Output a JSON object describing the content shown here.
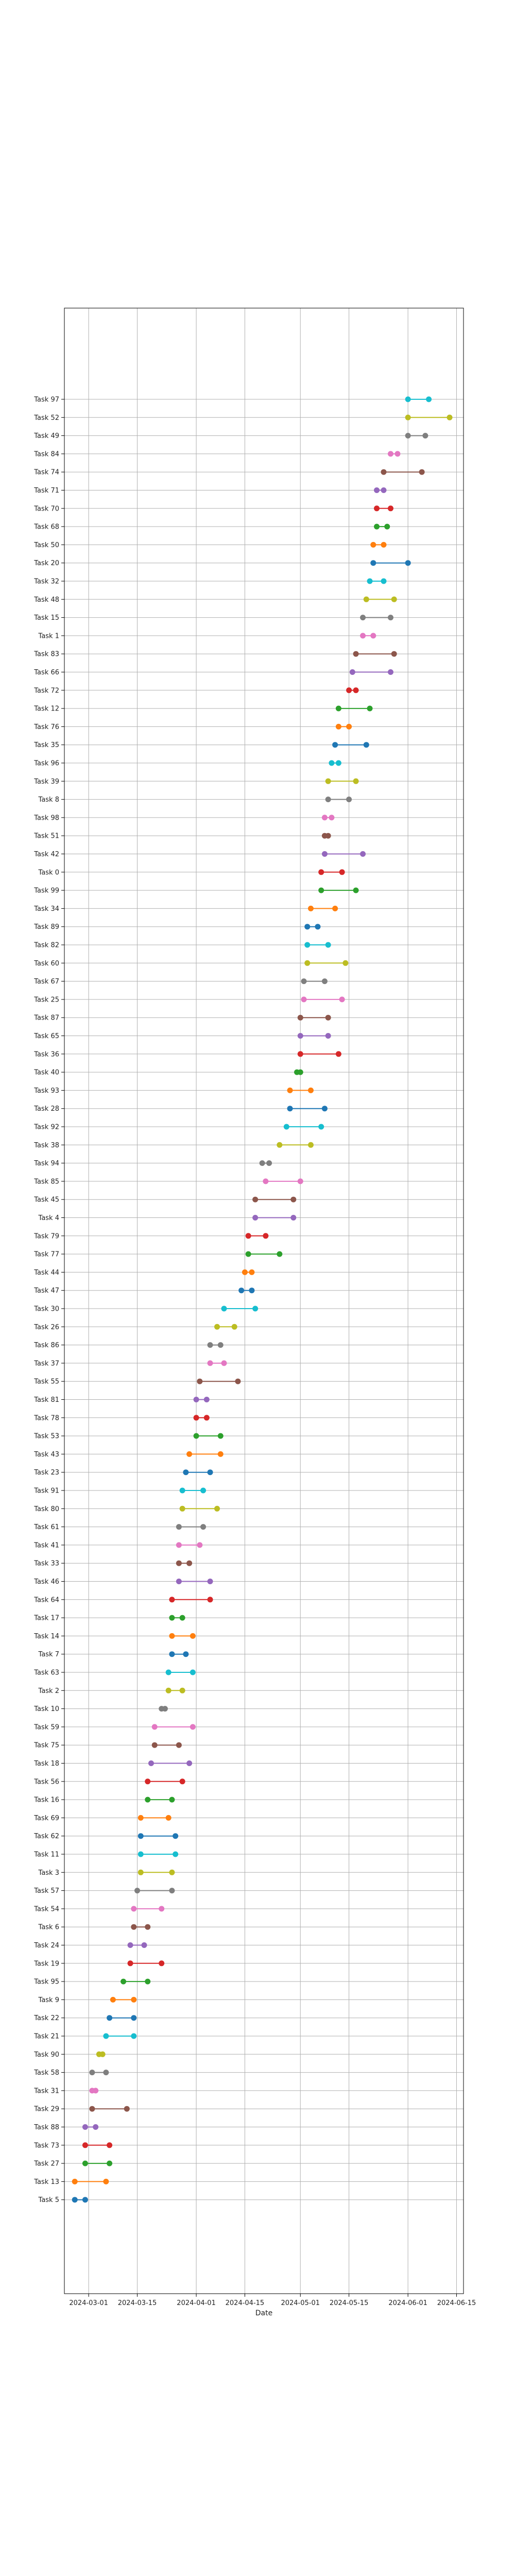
{
  "chart_data": {
    "type": "gantt-dumbbell",
    "xlabel": "Date",
    "ylabel": "",
    "grid": true,
    "x_axis": {
      "range": [
        "2024-02-23",
        "2024-06-17"
      ],
      "tick_values": [
        "2024-03-01",
        "2024-03-15",
        "2024-04-01",
        "2024-04-15",
        "2024-05-01",
        "2024-05-15",
        "2024-06-01",
        "2024-06-15"
      ],
      "tick_labels": [
        "2024-03-01",
        "2024-03-15",
        "2024-04-01",
        "2024-04-15",
        "2024-05-01",
        "2024-05-15",
        "2024-06-01",
        "2024-06-15"
      ]
    },
    "series": [
      {
        "name": "Task 97",
        "start": "2024-06-01",
        "end": "2024-06-07",
        "color": "#17becf"
      },
      {
        "name": "Task 52",
        "start": "2024-06-01",
        "end": "2024-06-13",
        "color": "#bcbd22"
      },
      {
        "name": "Task 49",
        "start": "2024-06-01",
        "end": "2024-06-06",
        "color": "#7f7f7f"
      },
      {
        "name": "Task 84",
        "start": "2024-05-27",
        "end": "2024-05-29",
        "color": "#e377c2"
      },
      {
        "name": "Task 74",
        "start": "2024-05-25",
        "end": "2024-06-05",
        "color": "#8c564b"
      },
      {
        "name": "Task 71",
        "start": "2024-05-23",
        "end": "2024-05-25",
        "color": "#9467bd"
      },
      {
        "name": "Task 70",
        "start": "2024-05-23",
        "end": "2024-05-27",
        "color": "#d62728"
      },
      {
        "name": "Task 68",
        "start": "2024-05-23",
        "end": "2024-05-26",
        "color": "#2ca02c"
      },
      {
        "name": "Task 50",
        "start": "2024-05-22",
        "end": "2024-05-25",
        "color": "#ff7f0e"
      },
      {
        "name": "Task 20",
        "start": "2024-05-22",
        "end": "2024-06-01",
        "color": "#1f77b4"
      },
      {
        "name": "Task 32",
        "start": "2024-05-21",
        "end": "2024-05-25",
        "color": "#17becf"
      },
      {
        "name": "Task 48",
        "start": "2024-05-20",
        "end": "2024-05-28",
        "color": "#bcbd22"
      },
      {
        "name": "Task 15",
        "start": "2024-05-19",
        "end": "2024-05-27",
        "color": "#7f7f7f"
      },
      {
        "name": "Task 1",
        "start": "2024-05-19",
        "end": "2024-05-22",
        "color": "#e377c2"
      },
      {
        "name": "Task 83",
        "start": "2024-05-17",
        "end": "2024-05-28",
        "color": "#8c564b"
      },
      {
        "name": "Task 66",
        "start": "2024-05-16",
        "end": "2024-05-27",
        "color": "#9467bd"
      },
      {
        "name": "Task 72",
        "start": "2024-05-15",
        "end": "2024-05-17",
        "color": "#d62728"
      },
      {
        "name": "Task 12",
        "start": "2024-05-12",
        "end": "2024-05-21",
        "color": "#2ca02c"
      },
      {
        "name": "Task 76",
        "start": "2024-05-12",
        "end": "2024-05-15",
        "color": "#ff7f0e"
      },
      {
        "name": "Task 35",
        "start": "2024-05-11",
        "end": "2024-05-20",
        "color": "#1f77b4"
      },
      {
        "name": "Task 96",
        "start": "2024-05-10",
        "end": "2024-05-12",
        "color": "#17becf"
      },
      {
        "name": "Task 39",
        "start": "2024-05-09",
        "end": "2024-05-17",
        "color": "#bcbd22"
      },
      {
        "name": "Task 8",
        "start": "2024-05-09",
        "end": "2024-05-15",
        "color": "#7f7f7f"
      },
      {
        "name": "Task 98",
        "start": "2024-05-08",
        "end": "2024-05-10",
        "color": "#e377c2"
      },
      {
        "name": "Task 51",
        "start": "2024-05-08",
        "end": "2024-05-09",
        "color": "#8c564b"
      },
      {
        "name": "Task 42",
        "start": "2024-05-08",
        "end": "2024-05-19",
        "color": "#9467bd"
      },
      {
        "name": "Task 0",
        "start": "2024-05-07",
        "end": "2024-05-13",
        "color": "#d62728"
      },
      {
        "name": "Task 99",
        "start": "2024-05-07",
        "end": "2024-05-17",
        "color": "#2ca02c"
      },
      {
        "name": "Task 34",
        "start": "2024-05-04",
        "end": "2024-05-11",
        "color": "#ff7f0e"
      },
      {
        "name": "Task 89",
        "start": "2024-05-03",
        "end": "2024-05-06",
        "color": "#1f77b4"
      },
      {
        "name": "Task 82",
        "start": "2024-05-03",
        "end": "2024-05-09",
        "color": "#17becf"
      },
      {
        "name": "Task 60",
        "start": "2024-05-03",
        "end": "2024-05-14",
        "color": "#bcbd22"
      },
      {
        "name": "Task 67",
        "start": "2024-05-02",
        "end": "2024-05-08",
        "color": "#7f7f7f"
      },
      {
        "name": "Task 25",
        "start": "2024-05-02",
        "end": "2024-05-13",
        "color": "#e377c2"
      },
      {
        "name": "Task 87",
        "start": "2024-05-01",
        "end": "2024-05-09",
        "color": "#8c564b"
      },
      {
        "name": "Task 65",
        "start": "2024-05-01",
        "end": "2024-05-09",
        "color": "#9467bd"
      },
      {
        "name": "Task 36",
        "start": "2024-05-01",
        "end": "2024-05-12",
        "color": "#d62728"
      },
      {
        "name": "Task 40",
        "start": "2024-04-30",
        "end": "2024-05-01",
        "color": "#2ca02c"
      },
      {
        "name": "Task 93",
        "start": "2024-04-28",
        "end": "2024-05-04",
        "color": "#ff7f0e"
      },
      {
        "name": "Task 28",
        "start": "2024-04-28",
        "end": "2024-05-08",
        "color": "#1f77b4"
      },
      {
        "name": "Task 92",
        "start": "2024-04-27",
        "end": "2024-05-07",
        "color": "#17becf"
      },
      {
        "name": "Task 38",
        "start": "2024-04-25",
        "end": "2024-05-04",
        "color": "#bcbd22"
      },
      {
        "name": "Task 94",
        "start": "2024-04-20",
        "end": "2024-04-22",
        "color": "#7f7f7f"
      },
      {
        "name": "Task 85",
        "start": "2024-04-21",
        "end": "2024-05-01",
        "color": "#e377c2"
      },
      {
        "name": "Task 45",
        "start": "2024-04-18",
        "end": "2024-04-29",
        "color": "#8c564b"
      },
      {
        "name": "Task 4",
        "start": "2024-04-18",
        "end": "2024-04-29",
        "color": "#9467bd"
      },
      {
        "name": "Task 79",
        "start": "2024-04-16",
        "end": "2024-04-21",
        "color": "#d62728"
      },
      {
        "name": "Task 77",
        "start": "2024-04-16",
        "end": "2024-04-25",
        "color": "#2ca02c"
      },
      {
        "name": "Task 44",
        "start": "2024-04-15",
        "end": "2024-04-17",
        "color": "#ff7f0e"
      },
      {
        "name": "Task 47",
        "start": "2024-04-14",
        "end": "2024-04-17",
        "color": "#1f77b4"
      },
      {
        "name": "Task 30",
        "start": "2024-04-09",
        "end": "2024-04-18",
        "color": "#17becf"
      },
      {
        "name": "Task 26",
        "start": "2024-04-07",
        "end": "2024-04-12",
        "color": "#bcbd22"
      },
      {
        "name": "Task 86",
        "start": "2024-04-05",
        "end": "2024-04-08",
        "color": "#7f7f7f"
      },
      {
        "name": "Task 37",
        "start": "2024-04-05",
        "end": "2024-04-09",
        "color": "#e377c2"
      },
      {
        "name": "Task 55",
        "start": "2024-04-02",
        "end": "2024-04-13",
        "color": "#8c564b"
      },
      {
        "name": "Task 81",
        "start": "2024-04-01",
        "end": "2024-04-04",
        "color": "#9467bd"
      },
      {
        "name": "Task 78",
        "start": "2024-04-01",
        "end": "2024-04-04",
        "color": "#d62728"
      },
      {
        "name": "Task 53",
        "start": "2024-04-01",
        "end": "2024-04-08",
        "color": "#2ca02c"
      },
      {
        "name": "Task 43",
        "start": "2024-03-30",
        "end": "2024-04-08",
        "color": "#ff7f0e"
      },
      {
        "name": "Task 23",
        "start": "2024-03-29",
        "end": "2024-04-05",
        "color": "#1f77b4"
      },
      {
        "name": "Task 91",
        "start": "2024-03-28",
        "end": "2024-04-03",
        "color": "#17becf"
      },
      {
        "name": "Task 80",
        "start": "2024-03-28",
        "end": "2024-04-07",
        "color": "#bcbd22"
      },
      {
        "name": "Task 61",
        "start": "2024-03-27",
        "end": "2024-04-03",
        "color": "#7f7f7f"
      },
      {
        "name": "Task 41",
        "start": "2024-03-27",
        "end": "2024-04-02",
        "color": "#e377c2"
      },
      {
        "name": "Task 33",
        "start": "2024-03-27",
        "end": "2024-03-30",
        "color": "#8c564b"
      },
      {
        "name": "Task 46",
        "start": "2024-03-27",
        "end": "2024-04-05",
        "color": "#9467bd"
      },
      {
        "name": "Task 64",
        "start": "2024-03-25",
        "end": "2024-04-05",
        "color": "#d62728"
      },
      {
        "name": "Task 17",
        "start": "2024-03-25",
        "end": "2024-03-28",
        "color": "#2ca02c"
      },
      {
        "name": "Task 14",
        "start": "2024-03-25",
        "end": "2024-03-31",
        "color": "#ff7f0e"
      },
      {
        "name": "Task 7",
        "start": "2024-03-25",
        "end": "2024-03-29",
        "color": "#1f77b4"
      },
      {
        "name": "Task 63",
        "start": "2024-03-24",
        "end": "2024-03-31",
        "color": "#17becf"
      },
      {
        "name": "Task 2",
        "start": "2024-03-24",
        "end": "2024-03-28",
        "color": "#bcbd22"
      },
      {
        "name": "Task 10",
        "start": "2024-03-22",
        "end": "2024-03-23",
        "color": "#7f7f7f"
      },
      {
        "name": "Task 59",
        "start": "2024-03-20",
        "end": "2024-03-31",
        "color": "#e377c2"
      },
      {
        "name": "Task 75",
        "start": "2024-03-20",
        "end": "2024-03-27",
        "color": "#8c564b"
      },
      {
        "name": "Task 18",
        "start": "2024-03-19",
        "end": "2024-03-30",
        "color": "#9467bd"
      },
      {
        "name": "Task 56",
        "start": "2024-03-18",
        "end": "2024-03-28",
        "color": "#d62728"
      },
      {
        "name": "Task 16",
        "start": "2024-03-18",
        "end": "2024-03-25",
        "color": "#2ca02c"
      },
      {
        "name": "Task 69",
        "start": "2024-03-16",
        "end": "2024-03-24",
        "color": "#ff7f0e"
      },
      {
        "name": "Task 62",
        "start": "2024-03-16",
        "end": "2024-03-26",
        "color": "#1f77b4"
      },
      {
        "name": "Task 11",
        "start": "2024-03-16",
        "end": "2024-03-26",
        "color": "#17becf"
      },
      {
        "name": "Task 3",
        "start": "2024-03-16",
        "end": "2024-03-25",
        "color": "#bcbd22"
      },
      {
        "name": "Task 57",
        "start": "2024-03-15",
        "end": "2024-03-25",
        "color": "#7f7f7f"
      },
      {
        "name": "Task 54",
        "start": "2024-03-14",
        "end": "2024-03-22",
        "color": "#e377c2"
      },
      {
        "name": "Task 6",
        "start": "2024-03-14",
        "end": "2024-03-18",
        "color": "#8c564b"
      },
      {
        "name": "Task 24",
        "start": "2024-03-13",
        "end": "2024-03-17",
        "color": "#9467bd"
      },
      {
        "name": "Task 19",
        "start": "2024-03-13",
        "end": "2024-03-22",
        "color": "#d62728"
      },
      {
        "name": "Task 95",
        "start": "2024-03-11",
        "end": "2024-03-18",
        "color": "#2ca02c"
      },
      {
        "name": "Task 9",
        "start": "2024-03-08",
        "end": "2024-03-14",
        "color": "#ff7f0e"
      },
      {
        "name": "Task 22",
        "start": "2024-03-07",
        "end": "2024-03-14",
        "color": "#1f77b4"
      },
      {
        "name": "Task 21",
        "start": "2024-03-06",
        "end": "2024-03-14",
        "color": "#17becf"
      },
      {
        "name": "Task 90",
        "start": "2024-03-04",
        "end": "2024-03-05",
        "color": "#bcbd22"
      },
      {
        "name": "Task 58",
        "start": "2024-03-02",
        "end": "2024-03-06",
        "color": "#7f7f7f"
      },
      {
        "name": "Task 31",
        "start": "2024-03-02",
        "end": "2024-03-03",
        "color": "#e377c2"
      },
      {
        "name": "Task 29",
        "start": "2024-03-02",
        "end": "2024-03-12",
        "color": "#8c564b"
      },
      {
        "name": "Task 88",
        "start": "2024-02-29",
        "end": "2024-03-03",
        "color": "#9467bd"
      },
      {
        "name": "Task 73",
        "start": "2024-02-29",
        "end": "2024-03-07",
        "color": "#d62728"
      },
      {
        "name": "Task 27",
        "start": "2024-02-29",
        "end": "2024-03-07",
        "color": "#2ca02c"
      },
      {
        "name": "Task 13",
        "start": "2024-02-26",
        "end": "2024-03-06",
        "color": "#ff7f0e"
      },
      {
        "name": "Task 5",
        "start": "2024-02-26",
        "end": "2024-02-29",
        "color": "#1f77b4"
      }
    ]
  }
}
